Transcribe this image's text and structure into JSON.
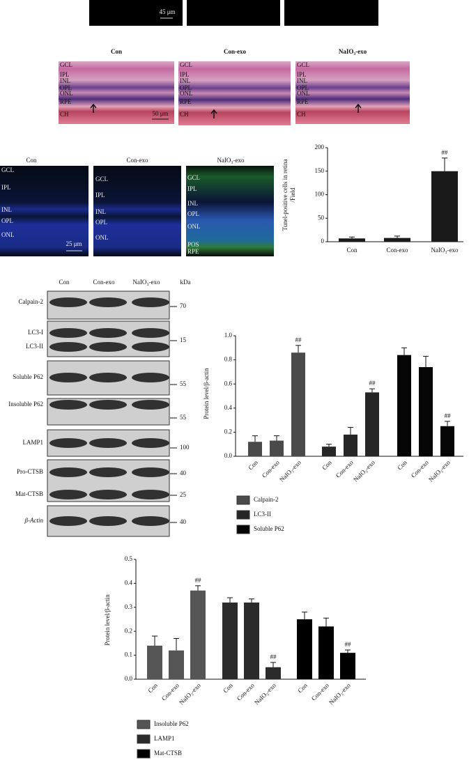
{
  "top_panel": {
    "scale": "45 μm"
  },
  "he_panel": {
    "titles": [
      "Con",
      "Con-exo",
      "NaIO₃-exo"
    ],
    "layers": [
      "GCL",
      "IPL",
      "INL",
      "OPL",
      "ONL",
      "RPE",
      "CH"
    ],
    "scale": "50 μm"
  },
  "tunel_panel": {
    "titles": [
      "Con",
      "Con-exo",
      "NaIO₃-exo"
    ],
    "layers": [
      [
        "GCL",
        "IPL",
        "INL",
        "OPL",
        "ONL"
      ],
      [
        "GCL",
        "IPL",
        "INL",
        "OPL",
        "ONL"
      ],
      [
        "GCL",
        "IPL",
        "INL",
        "OPL",
        "ONL",
        "POS",
        "RPE"
      ]
    ],
    "scale": "25 μm"
  },
  "blot_panel": {
    "lanes": [
      "Con",
      "Con-exo",
      "NaIO₃-exo"
    ],
    "unit": "kDa",
    "rows": [
      {
        "labels": [
          "Calpain-2"
        ],
        "markers": [
          70
        ]
      },
      {
        "labels": [
          "LC3-I",
          "LC3-II"
        ],
        "markers": [
          15
        ]
      },
      {
        "labels": [
          "Soluble P62"
        ],
        "markers": [
          55
        ]
      },
      {
        "labels": [
          "Insoluble P62"
        ],
        "markers": [
          55
        ]
      },
      {
        "labels": [
          "LAMP1"
        ],
        "markers": [
          100
        ]
      },
      {
        "labels": [
          "Pro-CTSB",
          "Mat-CTSB"
        ],
        "markers": [
          40,
          25
        ]
      },
      {
        "labels": [
          "β-Actin"
        ],
        "markers": [
          40
        ]
      }
    ]
  },
  "chart_data": [
    {
      "type": "bar",
      "ylabel": [
        "Tunel-positive cells in retina",
        "/Field"
      ],
      "categories": [
        "Con",
        "Con-exo",
        "NaIO₃-exo"
      ],
      "values": [
        7,
        8,
        150
      ],
      "errors": [
        3,
        4,
        28
      ],
      "annotations": [
        null,
        null,
        "##"
      ],
      "color": "#1a1a1a",
      "ylim": [
        0,
        200
      ],
      "yticks": [
        0,
        50,
        100,
        150,
        200
      ]
    },
    {
      "type": "grouped-bar",
      "ylabel": "Protein level/β-actin",
      "categories": [
        "Con",
        "Con-exo",
        "NaIO₃-exo"
      ],
      "series": [
        {
          "name": "Calpain-2",
          "color": "#4a4a4a",
          "values": [
            0.12,
            0.13,
            0.86
          ],
          "errors": [
            0.05,
            0.04,
            0.06
          ],
          "annotations": [
            null,
            null,
            "##"
          ]
        },
        {
          "name": "LC3-II",
          "color": "#262626",
          "values": [
            0.08,
            0.18,
            0.53
          ],
          "errors": [
            0.02,
            0.06,
            0.03
          ],
          "annotations": [
            null,
            null,
            "##"
          ]
        },
        {
          "name": "Soluble P62",
          "color": "#050505",
          "values": [
            0.84,
            0.74,
            0.25
          ],
          "errors": [
            0.06,
            0.09,
            0.04
          ],
          "annotations": [
            null,
            null,
            "##"
          ]
        }
      ],
      "ylim": [
        0,
        1.0
      ],
      "yticks": [
        {
          "value": 0,
          "label": "0.0"
        },
        0.2,
        0.4,
        0.6,
        0.8,
        {
          "value": 1.0,
          "label": "1.0"
        }
      ]
    },
    {
      "type": "grouped-bar",
      "ylabel": "Protein level/β-actin",
      "categories": [
        "Con",
        "Con-exo",
        "NaIO₃-exo"
      ],
      "series": [
        {
          "name": "Insoluble P62",
          "color": "#555555",
          "values": [
            0.14,
            0.12,
            0.37
          ],
          "errors": [
            0.04,
            0.05,
            0.02
          ],
          "annotations": [
            null,
            null,
            "##"
          ]
        },
        {
          "name": "LAMP1",
          "color": "#2b2b2b",
          "values": [
            0.32,
            0.32,
            0.05
          ],
          "errors": [
            0.02,
            0.015,
            0.02
          ],
          "annotations": [
            null,
            null,
            "##"
          ]
        },
        {
          "name": "Mat-CTSB",
          "color": "#000000",
          "values": [
            0.25,
            0.22,
            0.11
          ],
          "errors": [
            0.03,
            0.035,
            0.012
          ],
          "annotations": [
            null,
            null,
            "##"
          ]
        }
      ],
      "ylim": [
        0,
        0.5
      ],
      "yticks": [
        {
          "value": 0,
          "label": "0.0"
        },
        0.1,
        0.2,
        0.3,
        0.4,
        0.5
      ]
    }
  ]
}
